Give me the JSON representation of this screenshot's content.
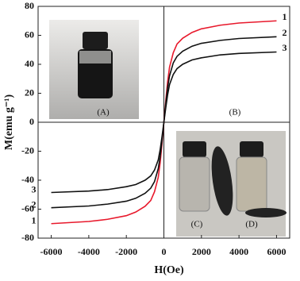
{
  "chart_data": {
    "type": "line",
    "x_label": "H(Oe)",
    "y_label": "M(emu g⁻¹)",
    "x": [
      -6000,
      -4000,
      -3000,
      -2000,
      -1500,
      -1000,
      -700,
      -500,
      -300,
      -200,
      -100,
      0,
      100,
      200,
      300,
      500,
      700,
      1000,
      1500,
      2000,
      3000,
      4000,
      6000
    ],
    "series": [
      {
        "name": "1",
        "color": "#e8192c",
        "values": [
          -70,
          -68.5,
          -67,
          -64.5,
          -62,
          -58,
          -54,
          -48,
          -38,
          -28,
          -15,
          0,
          15,
          28,
          38,
          48,
          54,
          58,
          62,
          64.5,
          67,
          68.5,
          70
        ]
      },
      {
        "name": "2",
        "color": "#111111",
        "values": [
          -59,
          -57.8,
          -56.5,
          -54.5,
          -52.5,
          -49,
          -45.5,
          -41,
          -32,
          -24,
          -13,
          0,
          13,
          24,
          32,
          41,
          45.5,
          49,
          52.5,
          54.5,
          56.5,
          57.8,
          59
        ]
      },
      {
        "name": "3",
        "color": "#111111",
        "values": [
          -48.5,
          -47.5,
          -46.5,
          -44.5,
          -43,
          -40,
          -37,
          -33,
          -26,
          -19,
          -10,
          0,
          10,
          19,
          26,
          33,
          37,
          40,
          43,
          44.5,
          46.5,
          47.5,
          48.5
        ]
      }
    ],
    "xlim": [
      -6700,
      6700
    ],
    "xticks": [
      -6000,
      -4000,
      -2000,
      0,
      2000,
      4000,
      6000
    ],
    "ylim": [
      -80,
      80
    ],
    "yticks": [
      80,
      60,
      40,
      20,
      0,
      -20,
      -40,
      -60,
      -80
    ],
    "grid": false,
    "annotations": [
      "(A)",
      "(B)",
      "(C)",
      "(D)"
    ]
  }
}
